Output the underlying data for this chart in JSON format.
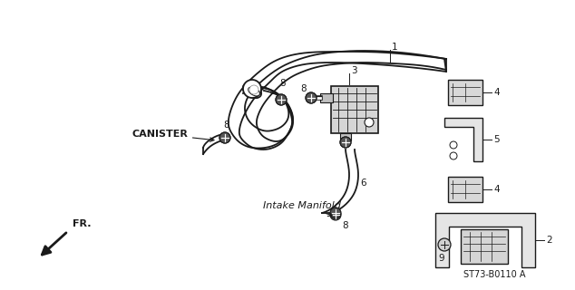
{
  "bg_color": "#ffffff",
  "line_color": "#1a1a1a",
  "figsize": [
    6.34,
    3.2
  ],
  "dpi": 100,
  "title_text": "ST73-B0110 A",
  "canister_label": "CANISTER",
  "intake_label": "Intake Manifold",
  "fr_label": "FR."
}
